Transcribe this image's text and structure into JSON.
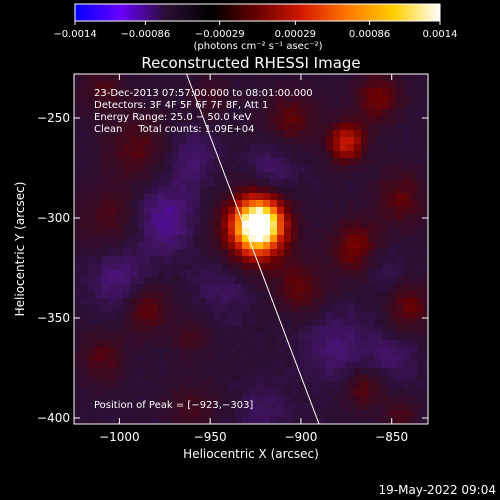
{
  "colorbar": {
    "ticks": [
      "-0.0014",
      "-0.00086",
      "-0.00029",
      "0.00029",
      "0.00086",
      "0.0014"
    ],
    "tick_values": [
      -0.0014,
      -0.00086,
      -0.00029,
      0.00029,
      0.00086,
      0.0014
    ],
    "units": "(photons cm⁻² s⁻¹ asec⁻²)",
    "stops": [
      "#0000ff",
      "#6a00ff",
      "#2a0f33",
      "#000000",
      "#6a0000",
      "#d61a00",
      "#ff7a00",
      "#ffd000",
      "#ffffff"
    ]
  },
  "chart_data": {
    "type": "heatmap",
    "title": "Reconstructed RHESSI Image",
    "xlabel": "Heliocentric X (arcsec)",
    "ylabel": "Heliocentric Y (arcsec)",
    "xlim": [
      -1025,
      -830
    ],
    "ylim": [
      -403,
      -228
    ],
    "x_ticks": [
      -1000,
      -950,
      -900,
      -850
    ],
    "y_ticks": [
      -250,
      -300,
      -350,
      -400
    ],
    "x_tick_labels": [
      "−1000",
      "−950",
      "−900",
      "−850"
    ],
    "y_tick_labels": [
      "−250",
      "−300",
      "−350",
      "−400"
    ],
    "annotations": [
      "23-Dec-2013 07:57:00.000 to 08:01:00.000",
      "Detectors: 3F 4F 5F 6F 7F 8F, Att 1",
      "Energy Range: 25.0 − 50.0 keV",
      "Clean     Total counts: 1.09E+04"
    ],
    "peak_label": "Position of Peak = [−923,−303]",
    "peak": [
      -923,
      -303
    ],
    "limb_line": [
      [
        -963,
        -228
      ],
      [
        -890,
        -403
      ]
    ],
    "blobs": [
      {
        "x": -923,
        "y": -303,
        "r": 9,
        "v": 1.0
      },
      {
        "x": -928,
        "y": -310,
        "r": 14,
        "v": 0.35
      },
      {
        "x": -875,
        "y": -262,
        "r": 7,
        "v": 0.45
      },
      {
        "x": -858,
        "y": -240,
        "r": 9,
        "v": 0.25
      },
      {
        "x": -905,
        "y": -250,
        "r": 10,
        "v": 0.2
      },
      {
        "x": -990,
        "y": -265,
        "r": 12,
        "v": 0.18
      },
      {
        "x": -1005,
        "y": -300,
        "r": 12,
        "v": 0.16
      },
      {
        "x": -985,
        "y": -345,
        "r": 9,
        "v": 0.22
      },
      {
        "x": -1010,
        "y": -370,
        "r": 9,
        "v": 0.18
      },
      {
        "x": -960,
        "y": -360,
        "r": 8,
        "v": 0.12
      },
      {
        "x": -900,
        "y": -335,
        "r": 9,
        "v": 0.22
      },
      {
        "x": -870,
        "y": -315,
        "r": 10,
        "v": 0.26
      },
      {
        "x": -845,
        "y": -290,
        "r": 10,
        "v": 0.2
      },
      {
        "x": -840,
        "y": -345,
        "r": 9,
        "v": 0.22
      },
      {
        "x": -865,
        "y": -385,
        "r": 8,
        "v": 0.2
      },
      {
        "x": -845,
        "y": -398,
        "r": 6,
        "v": 0.16
      },
      {
        "x": -960,
        "y": -395,
        "r": 9,
        "v": 0.14
      },
      {
        "x": -950,
        "y": -240,
        "r": 8,
        "v": 0.12
      },
      {
        "x": -1010,
        "y": -235,
        "r": 9,
        "v": 0.15
      },
      {
        "x": -975,
        "y": -300,
        "r": 12,
        "v": -0.22
      },
      {
        "x": -1000,
        "y": -330,
        "r": 11,
        "v": -0.18
      },
      {
        "x": -940,
        "y": -330,
        "r": 12,
        "v": -0.15
      },
      {
        "x": -880,
        "y": -365,
        "r": 12,
        "v": -0.16
      },
      {
        "x": -850,
        "y": -370,
        "r": 10,
        "v": -0.12
      },
      {
        "x": -915,
        "y": -275,
        "r": 9,
        "v": -0.13
      },
      {
        "x": -855,
        "y": -325,
        "r": 8,
        "v": -0.1
      },
      {
        "x": -960,
        "y": -270,
        "r": 10,
        "v": -0.14
      },
      {
        "x": -920,
        "y": -395,
        "r": 10,
        "v": -0.1
      }
    ]
  },
  "timestamp": "19-May-2022 09:04"
}
